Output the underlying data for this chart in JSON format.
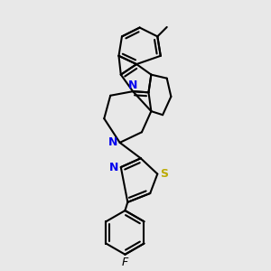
{
  "background_color": "#e8e8e8",
  "bond_color": "#000000",
  "N_color": "#0000ee",
  "S_color": "#bbaa00",
  "F_color": "#000000",
  "line_width": 1.5,
  "figsize": [
    3.0,
    3.0
  ],
  "dpi": 100,
  "xlim": [
    -1.2,
    1.6
  ],
  "ylim": [
    -2.8,
    2.2
  ]
}
